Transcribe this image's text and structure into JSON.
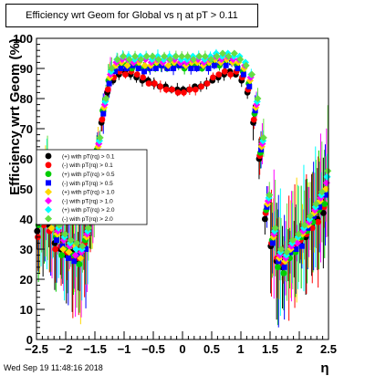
{
  "header": {
    "title": "Efficiency wrt Geom for Global vs   η at pT > 0.11"
  },
  "footer": {
    "datestamp": "Wed Sep 19 11:48:16 2018"
  },
  "chart_data": {
    "type": "scatter",
    "title": "Efficiency wrt Geom for Global vs   η at pT > 0.11",
    "xlabel": "η",
    "ylabel": "Efficiency wrt Geom (%)",
    "xlim": [
      -2.5,
      2.5
    ],
    "ylim": [
      0,
      100
    ],
    "x_ticks": [
      "−2.5",
      "−2",
      "−1.5",
      "−1",
      "−0.5",
      "0",
      "0.5",
      "1",
      "1.5",
      "2",
      "2.5"
    ],
    "y_ticks": [
      "0",
      "10",
      "20",
      "30",
      "40",
      "50",
      "60",
      "70",
      "80",
      "90",
      "100"
    ],
    "grid": false,
    "legend_position": "center-left",
    "eta_bins": [
      -2.45,
      -2.35,
      -2.25,
      -2.15,
      -2.05,
      -1.95,
      -1.85,
      -1.75,
      -1.65,
      -1.55,
      -1.45,
      -1.35,
      -1.25,
      -1.15,
      -1.05,
      -0.95,
      -0.85,
      -0.75,
      -0.65,
      -0.55,
      -0.45,
      -0.35,
      -0.25,
      -0.15,
      -0.05,
      0.05,
      0.15,
      0.25,
      0.35,
      0.45,
      0.55,
      0.65,
      0.75,
      0.85,
      0.95,
      1.05,
      1.15,
      1.25,
      1.35,
      1.45,
      1.55,
      1.65,
      1.75,
      1.85,
      1.95,
      2.05,
      2.15,
      2.25,
      2.35,
      2.45
    ],
    "series": [
      {
        "name": "(+) with pT(rq) > 0.1",
        "color": "#000000",
        "marker": "circle",
        "values": [
          36,
          40,
          38,
          32,
          30,
          28,
          29,
          26,
          31,
          40,
          60,
          72,
          82,
          86,
          88,
          89,
          88,
          87,
          86,
          86,
          85,
          84,
          84,
          83,
          83,
          83,
          83,
          84,
          84,
          85,
          86,
          87,
          88,
          89,
          88,
          86,
          82,
          72,
          60,
          40,
          31,
          26,
          24,
          28,
          30,
          32,
          34,
          38,
          40,
          42
        ]
      },
      {
        "name": "(-) with pT(rq) > 0.1",
        "color": "#ff0000",
        "marker": "circle",
        "values": [
          34,
          38,
          36,
          30,
          31,
          29,
          27,
          27,
          32,
          42,
          61,
          73,
          83,
          87,
          89,
          88,
          89,
          88,
          87,
          85,
          85,
          84,
          83,
          83,
          82,
          82,
          83,
          83,
          84,
          85,
          87,
          88,
          89,
          88,
          89,
          87,
          83,
          73,
          61,
          42,
          32,
          27,
          25,
          27,
          31,
          33,
          35,
          37,
          39,
          44
        ]
      },
      {
        "name": "(+) with pT(rq) > 0.5",
        "color": "#00cc00",
        "marker": "circle",
        "values": [
          38,
          44,
          41,
          34,
          28,
          30,
          28,
          25,
          33,
          44,
          63,
          76,
          86,
          90,
          91,
          91,
          90,
          91,
          90,
          90,
          91,
          91,
          90,
          91,
          91,
          90,
          91,
          91,
          90,
          91,
          92,
          91,
          92,
          93,
          91,
          89,
          85,
          75,
          62,
          43,
          33,
          24,
          22,
          27,
          29,
          34,
          36,
          39,
          43,
          45
        ]
      },
      {
        "name": "(-) with pT(rq) > 0.5",
        "color": "#0000ff",
        "marker": "square",
        "values": [
          40,
          42,
          39,
          33,
          31,
          27,
          26,
          28,
          30,
          43,
          62,
          75,
          85,
          89,
          90,
          90,
          91,
          90,
          89,
          90,
          90,
          91,
          90,
          90,
          91,
          91,
          90,
          90,
          91,
          90,
          91,
          92,
          91,
          92,
          90,
          88,
          84,
          76,
          63,
          44,
          32,
          26,
          24,
          29,
          30,
          31,
          37,
          41,
          44,
          48
        ]
      },
      {
        "name": "(+) with pT(rq) > 1.0",
        "color": "#ffd700",
        "marker": "diamond",
        "values": [
          42,
          46,
          37,
          35,
          30,
          29,
          31,
          27,
          34,
          45,
          64,
          77,
          87,
          91,
          92,
          91,
          92,
          92,
          91,
          91,
          92,
          92,
          91,
          92,
          92,
          91,
          92,
          92,
          91,
          92,
          93,
          92,
          93,
          92,
          92,
          90,
          86,
          77,
          64,
          45,
          34,
          27,
          26,
          30,
          33,
          35,
          38,
          42,
          46,
          50
        ]
      },
      {
        "name": "(-) with pT(rq) > 1.0",
        "color": "#ff00ff",
        "marker": "diamond",
        "values": [
          44,
          48,
          40,
          36,
          33,
          31,
          28,
          29,
          35,
          46,
          65,
          78,
          88,
          92,
          93,
          93,
          92,
          93,
          93,
          92,
          93,
          92,
          93,
          93,
          92,
          92,
          93,
          93,
          92,
          93,
          94,
          93,
          94,
          93,
          93,
          91,
          87,
          78,
          65,
          46,
          35,
          28,
          27,
          31,
          32,
          36,
          39,
          43,
          47,
          52
        ]
      },
      {
        "name": "(+) with pT(rq) > 2.0",
        "color": "#00ffff",
        "marker": "diamond",
        "values": [
          39,
          45,
          43,
          37,
          34,
          32,
          30,
          30,
          36,
          47,
          66,
          79,
          89,
          93,
          94,
          94,
          93,
          94,
          94,
          93,
          94,
          93,
          94,
          94,
          93,
          93,
          94,
          94,
          93,
          94,
          95,
          94,
          95,
          94,
          94,
          92,
          88,
          79,
          66,
          47,
          36,
          29,
          28,
          32,
          34,
          37,
          40,
          44,
          48,
          54
        ]
      },
      {
        "name": "(-) with pT(rq) > 2.0",
        "color": "#66dd44",
        "marker": "diamond",
        "values": [
          41,
          47,
          45,
          38,
          35,
          33,
          32,
          31,
          37,
          48,
          67,
          80,
          90,
          93,
          94,
          93,
          94,
          93,
          94,
          94,
          93,
          94,
          93,
          94,
          94,
          94,
          93,
          94,
          94,
          93,
          94,
          95,
          94,
          95,
          93,
          91,
          88,
          80,
          67,
          48,
          37,
          30,
          29,
          33,
          35,
          38,
          41,
          45,
          49,
          56
        ]
      }
    ]
  }
}
